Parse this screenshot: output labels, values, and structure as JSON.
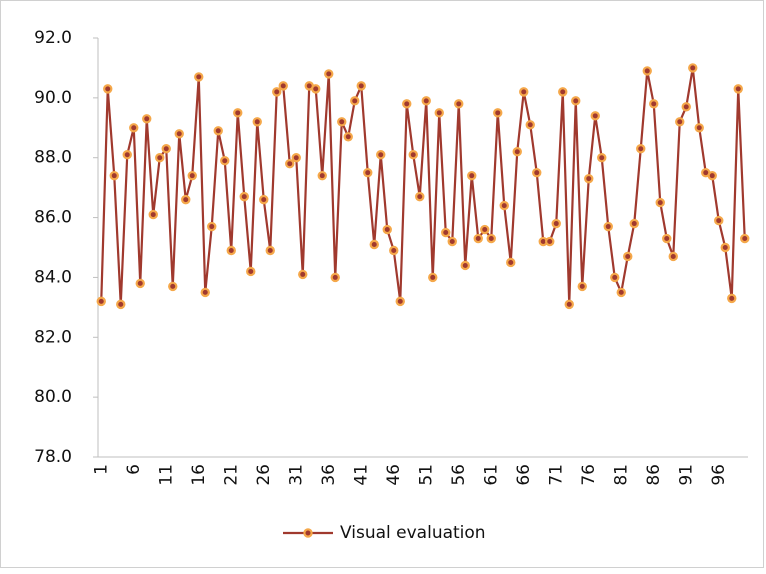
{
  "chart_data": {
    "type": "line",
    "categories": [
      "1",
      null,
      null,
      null,
      null,
      "6",
      null,
      null,
      null,
      null,
      "11",
      null,
      null,
      null,
      null,
      "16",
      null,
      null,
      null,
      null,
      "21",
      null,
      null,
      null,
      null,
      "26",
      null,
      null,
      null,
      null,
      "31",
      null,
      null,
      null,
      null,
      "36",
      null,
      null,
      null,
      null,
      "41",
      null,
      null,
      null,
      null,
      "46",
      null,
      null,
      null,
      null,
      "51",
      null,
      null,
      null,
      null,
      "56",
      null,
      null,
      null,
      null,
      "61",
      null,
      null,
      null,
      null,
      "66",
      null,
      null,
      null,
      null,
      "71",
      null,
      null,
      null,
      null,
      "76",
      null,
      null,
      null,
      null,
      "81",
      null,
      null,
      null,
      null,
      "86",
      null,
      null,
      null,
      null,
      "91",
      null,
      null,
      null,
      null,
      "96",
      null,
      null,
      null,
      null
    ],
    "series": [
      {
        "name": "Visual evaluation",
        "color": "#a0392e",
        "marker_color": "#f5a84a",
        "values": [
          83.2,
          90.3,
          87.4,
          83.1,
          88.1,
          89.0,
          83.8,
          89.3,
          86.1,
          88.0,
          88.3,
          83.7,
          88.8,
          86.6,
          87.4,
          90.7,
          83.5,
          85.7,
          88.9,
          87.9,
          84.9,
          89.5,
          86.7,
          84.2,
          89.2,
          86.6,
          84.9,
          90.2,
          90.4,
          87.8,
          88.0,
          84.1,
          90.4,
          90.3,
          87.4,
          90.8,
          84.0,
          89.2,
          88.7,
          89.9,
          90.4,
          87.5,
          85.1,
          88.1,
          85.6,
          84.9,
          83.2,
          89.8,
          88.1,
          86.7,
          89.9,
          84.0,
          89.5,
          85.5,
          85.2,
          89.8,
          84.4,
          87.4,
          85.3,
          85.6,
          85.3,
          89.5,
          86.4,
          84.5,
          88.2,
          90.2,
          89.1,
          87.5,
          85.2,
          85.2,
          85.8,
          90.2,
          83.1,
          89.9,
          83.7,
          87.3,
          89.4,
          88.0,
          85.7,
          84.0,
          83.5,
          84.7,
          85.8,
          88.3,
          90.9,
          89.8,
          86.5,
          85.3,
          84.7,
          89.2,
          89.7,
          91.0,
          89.0,
          87.5,
          87.4,
          85.9,
          85.0,
          83.3,
          90.3,
          85.3
        ]
      }
    ],
    "ylim": [
      78,
      92
    ],
    "yticks": [
      {
        "value": 78,
        "label": "78.0"
      },
      {
        "value": 80,
        "label": "80.0"
      },
      {
        "value": 82,
        "label": "82.0"
      },
      {
        "value": 84,
        "label": "84.0"
      },
      {
        "value": 86,
        "label": "86.0"
      },
      {
        "value": 88,
        "label": "88.0"
      },
      {
        "value": 90,
        "label": "90.0"
      },
      {
        "value": 92,
        "label": "92.0"
      }
    ],
    "grid": false,
    "legend": "bottom"
  }
}
